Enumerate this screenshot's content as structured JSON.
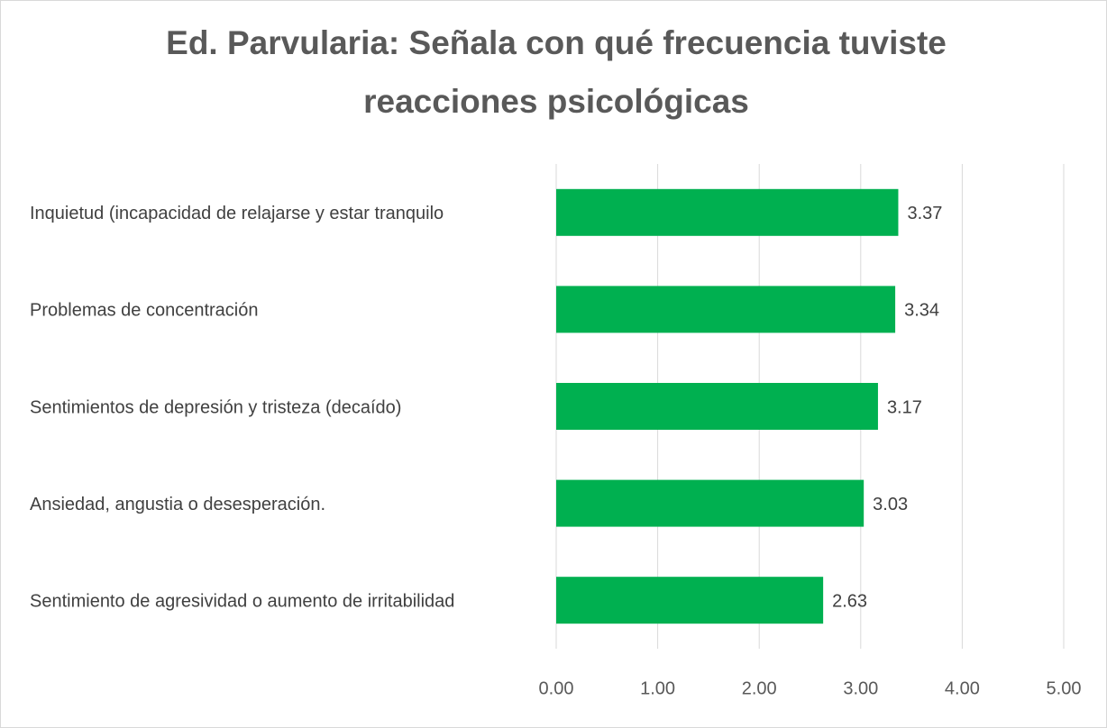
{
  "chart_data": {
    "type": "bar",
    "orientation": "horizontal",
    "title": [
      "Ed. Parvularia: Señala con qué frecuencia tuviste",
      "reacciones psicológicas"
    ],
    "categories": [
      "Inquietud (incapacidad de relajarse y estar tranquilo",
      "Problemas de concentración",
      "Sentimientos de depresión y tristeza (decaído)",
      "Ansiedad, angustia o desesperación.",
      "Sentimiento de agresividad o aumento de irritabilidad"
    ],
    "values": [
      3.37,
      3.34,
      3.17,
      3.03,
      2.63
    ],
    "color": "#00b050",
    "xlim": [
      0,
      5
    ],
    "xticks": [
      {
        "value": 0,
        "label": "0.00"
      },
      {
        "value": 1,
        "label": "1.00"
      },
      {
        "value": 2,
        "label": "2.00"
      },
      {
        "value": 3,
        "label": "3.00"
      },
      {
        "value": 4,
        "label": "4.00"
      },
      {
        "value": 5,
        "label": "5.00"
      }
    ],
    "grid": true
  }
}
